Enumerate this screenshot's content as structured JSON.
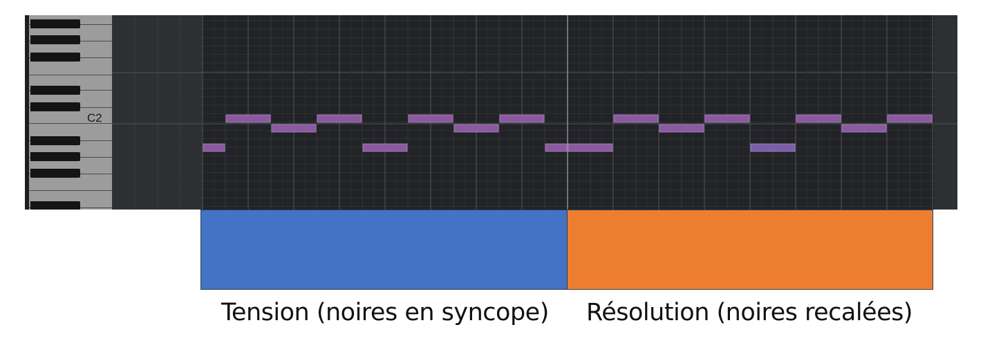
{
  "keyboard": {
    "octave_label": "C2"
  },
  "sections": [
    {
      "name": "tension",
      "label": "Tension (noires en syncope)",
      "color": "#4472c4"
    },
    {
      "name": "resolution",
      "label": "Résolution (noires recalées)",
      "color": "#ed7d31"
    }
  ],
  "colors": {
    "note": "#8a5a9e",
    "note_selected": "#7a5fa8",
    "grid_bg": "#2a2c30",
    "grid_bg_active": "#212326"
  },
  "notes": [
    {
      "beat": 0.0,
      "length": 1,
      "pitch": -3
    },
    {
      "beat": 1.0,
      "length": 2,
      "pitch": 0
    },
    {
      "beat": 3.0,
      "length": 2,
      "pitch": -1
    },
    {
      "beat": 5.0,
      "length": 2,
      "pitch": 0
    },
    {
      "beat": 7.0,
      "length": 2,
      "pitch": -3
    },
    {
      "beat": 9.0,
      "length": 2,
      "pitch": 0
    },
    {
      "beat": 11.0,
      "length": 2,
      "pitch": -1
    },
    {
      "beat": 13.0,
      "length": 2,
      "pitch": 0
    },
    {
      "beat": 15.0,
      "length": 1,
      "pitch": -3
    },
    {
      "beat": 16.0,
      "length": 2,
      "pitch": -3
    },
    {
      "beat": 18.0,
      "length": 2,
      "pitch": 0
    },
    {
      "beat": 20.0,
      "length": 2,
      "pitch": -1
    },
    {
      "beat": 22.0,
      "length": 2,
      "pitch": 0
    },
    {
      "beat": 24.0,
      "length": 2,
      "pitch": -3,
      "selected": true
    },
    {
      "beat": 26.0,
      "length": 2,
      "pitch": 0
    },
    {
      "beat": 28.0,
      "length": 2,
      "pitch": -1
    },
    {
      "beat": 30.0,
      "length": 2,
      "pitch": 0
    }
  ]
}
